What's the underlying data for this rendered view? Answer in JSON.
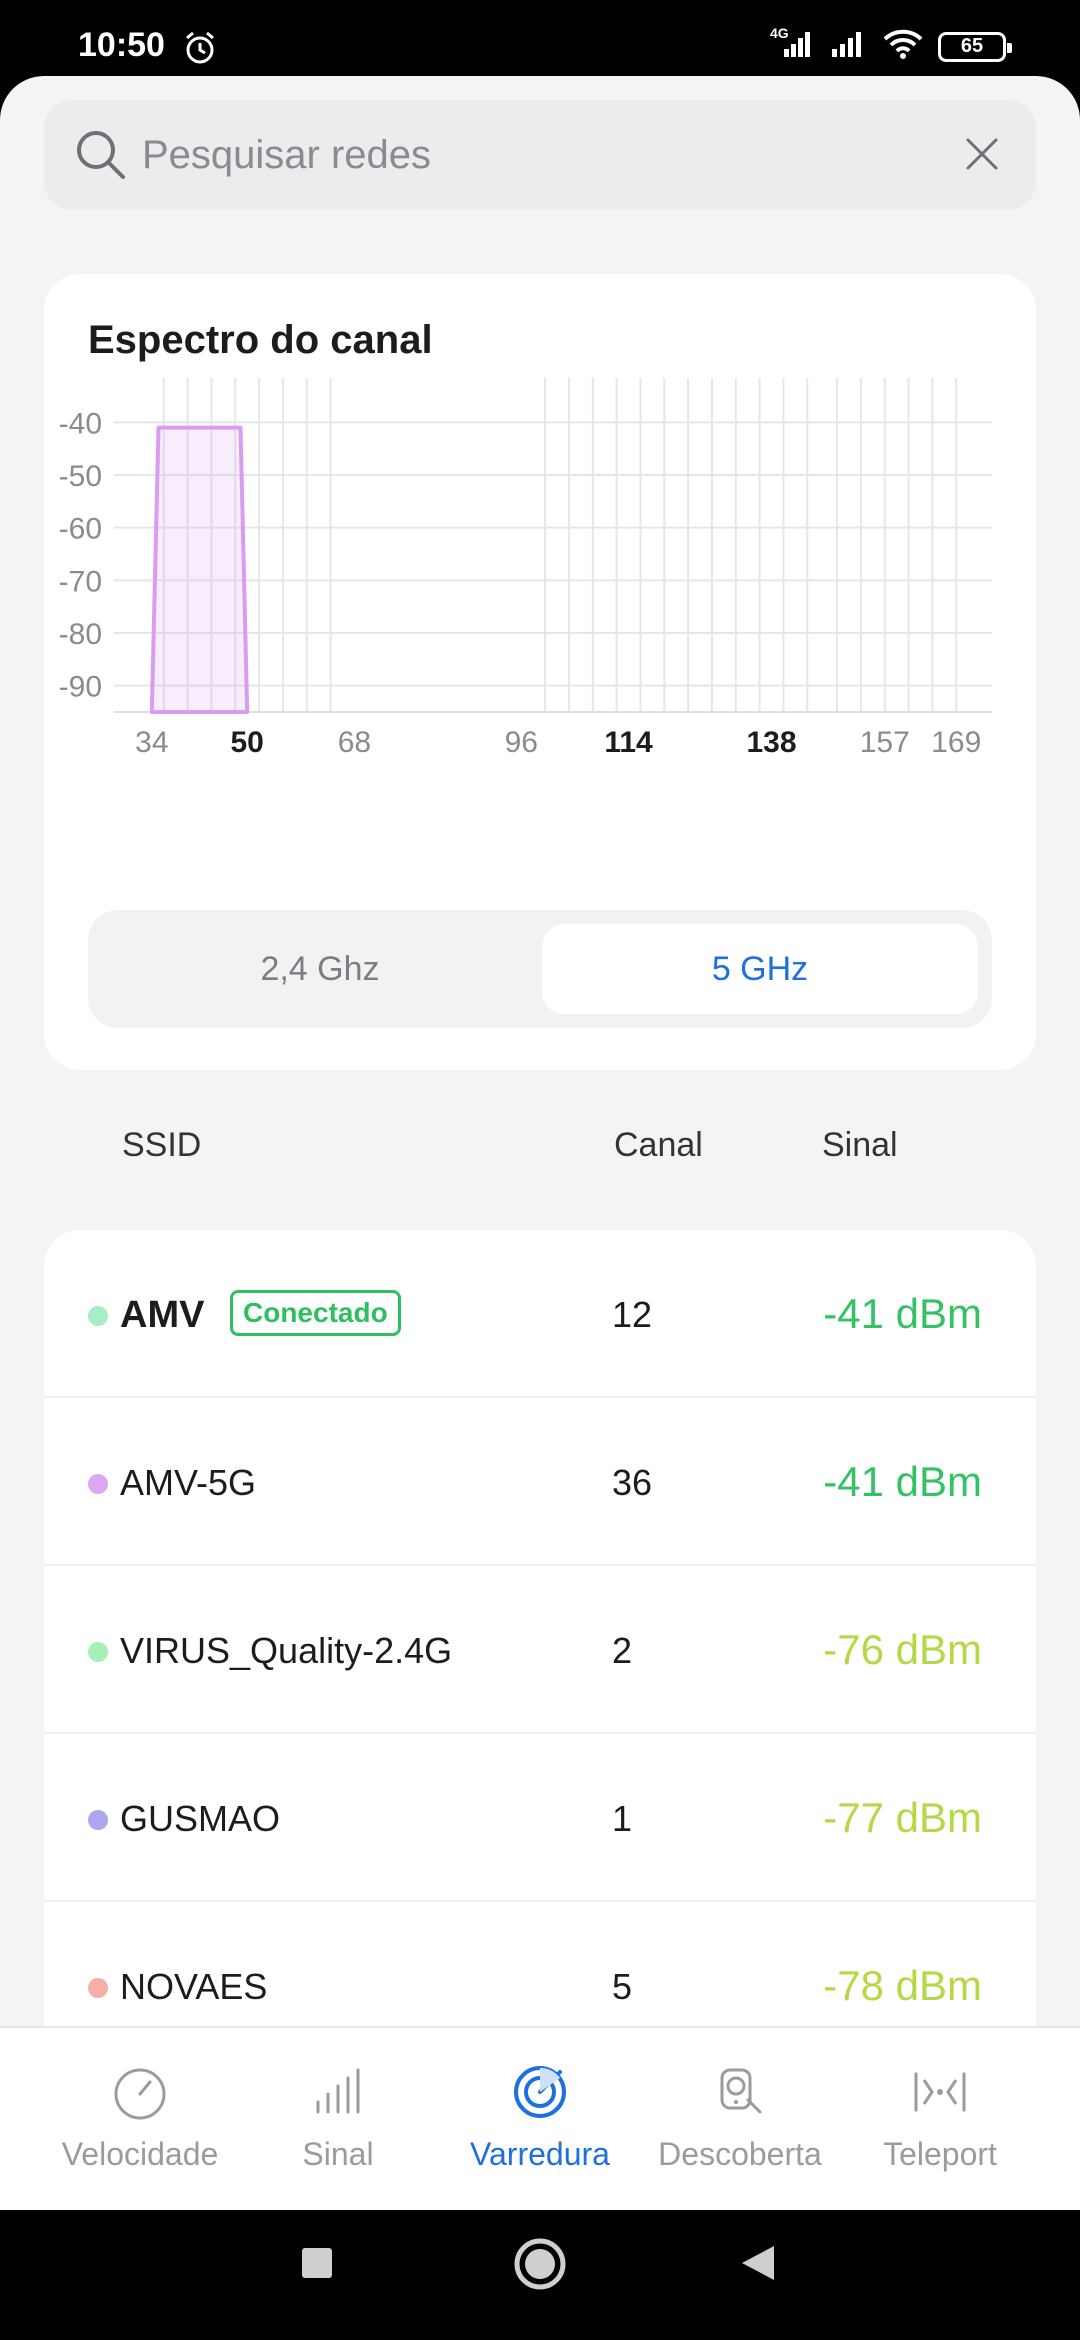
{
  "status_bar": {
    "time": "10:50",
    "network_type": "4G",
    "battery": "65"
  },
  "search": {
    "placeholder": "Pesquisar redes"
  },
  "spectrum": {
    "title": "Espectro do canal",
    "bands": [
      "2,4 Ghz",
      "5 GHz"
    ],
    "selected_band": "5 GHz"
  },
  "chart_data": {
    "type": "area",
    "title": "Espectro do canal",
    "xlabel": "",
    "ylabel": "",
    "x_ticks": [
      "34",
      "50",
      "68",
      "96",
      "114",
      "138",
      "157",
      "169"
    ],
    "x_ticks_bold": [
      "50",
      "114",
      "138"
    ],
    "y_ticks": [
      "-40",
      "-50",
      "-60",
      "-70",
      "-80",
      "-90"
    ],
    "ylim": [
      -95,
      -35
    ],
    "series": [
      {
        "name": "AMV-5G",
        "channel": 36,
        "width_channels": [
          34,
          50
        ],
        "peak": -41,
        "color": "#d99cf0"
      }
    ],
    "grid": true
  },
  "list_header": {
    "ssid": "SSID",
    "channel": "Canal",
    "signal": "Sinal"
  },
  "networks": [
    {
      "ssid": "AMV",
      "badge": "Conectado",
      "channel": "12",
      "signal": "-41 dBm",
      "dot_color": "#a8edc3",
      "signal_color": "#35c265"
    },
    {
      "ssid": "AMV-5G",
      "badge": "",
      "channel": "36",
      "signal": "-41 dBm",
      "dot_color": "#dca6f0",
      "signal_color": "#35c265"
    },
    {
      "ssid": "VIRUS_Quality-2.4G",
      "badge": "",
      "channel": "2",
      "signal": "-76 dBm",
      "dot_color": "#a6f0b5",
      "signal_color": "#b5d847"
    },
    {
      "ssid": "GUSMAO",
      "badge": "",
      "channel": "1",
      "signal": "-77 dBm",
      "dot_color": "#aaa6f0",
      "signal_color": "#b5d847"
    },
    {
      "ssid": "NOVAES",
      "badge": "",
      "channel": "5",
      "signal": "-78 dBm",
      "dot_color": "#f5b0a6",
      "signal_color": "#b5d847"
    }
  ],
  "bottom_nav": {
    "items": [
      {
        "label": "Velocidade",
        "icon": "speedometer-icon"
      },
      {
        "label": "Sinal",
        "icon": "signal-bars-icon"
      },
      {
        "label": "Varredura",
        "icon": "radar-scan-icon"
      },
      {
        "label": "Descoberta",
        "icon": "device-discovery-icon"
      },
      {
        "label": "Teleport",
        "icon": "teleport-icon"
      }
    ],
    "active": "Varredura"
  },
  "colors": {
    "accent": "#1e6fe0",
    "strong_signal": "#35c265",
    "weak_signal": "#b5d847"
  }
}
